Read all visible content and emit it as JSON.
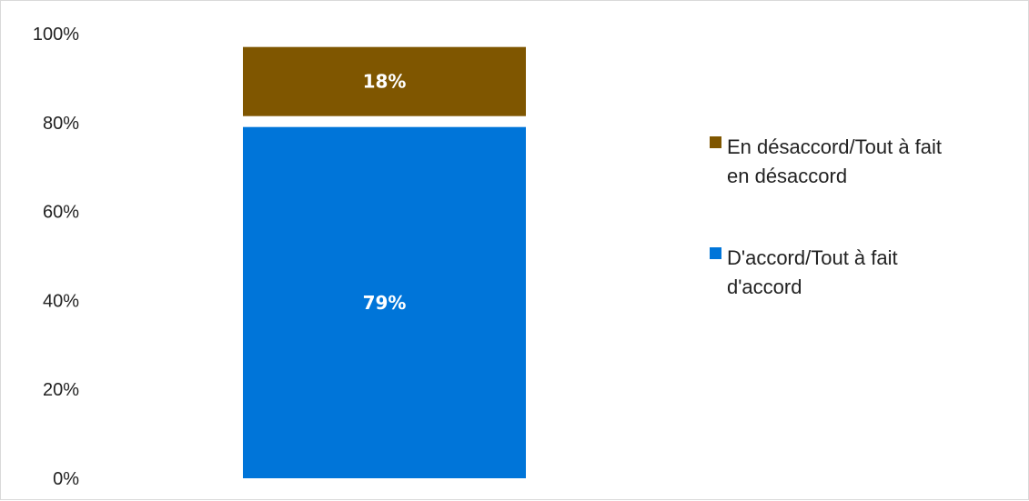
{
  "chart_data": {
    "type": "bar",
    "stacked": true,
    "categories": [
      ""
    ],
    "series": [
      {
        "name": "D'accord/Tout à fait d'accord",
        "values": [
          79
        ],
        "label": "79%",
        "color": "#0075D9",
        "label_color": "#ffffff"
      },
      {
        "name": "En désaccord/Tout à fait en désaccord",
        "values": [
          18
        ],
        "label": "18%",
        "color": "#7F5600",
        "label_color": "#ffffff"
      }
    ],
    "ylim": [
      0,
      100
    ],
    "y_ticks": [
      {
        "value": 0,
        "label": "0%"
      },
      {
        "value": 20,
        "label": "20%"
      },
      {
        "value": 40,
        "label": "40%"
      },
      {
        "value": 60,
        "label": "60%"
      },
      {
        "value": 80,
        "label": "80%"
      },
      {
        "value": 100,
        "label": "100%"
      }
    ],
    "legend": [
      {
        "lines": [
          "En désaccord/Tout à fait",
          "en désaccord"
        ],
        "color": "#7F5600"
      },
      {
        "lines": [
          "D'accord/Tout à fait",
          "d'accord"
        ],
        "color": "#0075D9"
      }
    ],
    "legend_position": "right",
    "grid": false
  }
}
